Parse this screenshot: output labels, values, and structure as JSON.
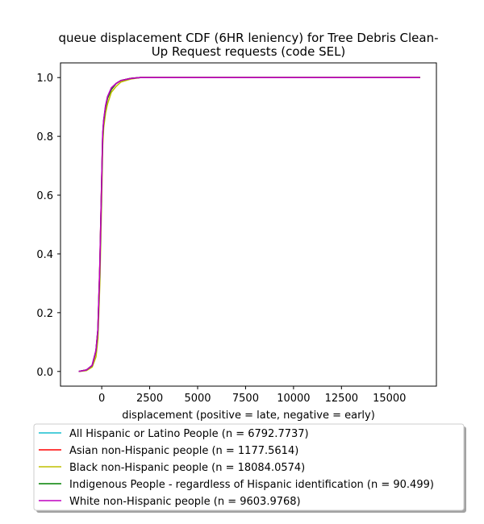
{
  "chart_data": {
    "type": "line",
    "title": [
      "queue displacement CDF (6HR leniency) for Tree Debris Clean-",
      "Up Request  requests (code SEL)"
    ],
    "xlabel": "displacement (positive = late, negative = early)",
    "ylabel": "",
    "xlim": [
      -2150,
      17450
    ],
    "ylim": [
      -0.05,
      1.05
    ],
    "xticks": [
      0,
      2500,
      5000,
      7500,
      10000,
      12500,
      15000
    ],
    "yticks": [
      0.0,
      0.2,
      0.4,
      0.6,
      0.8,
      1.0
    ],
    "grid": false,
    "legend_position": "below-plot",
    "series": [
      {
        "name": "All Hispanic or Latino People (n = 6792.7737)",
        "color": "#17becf",
        "x": [
          -1200,
          -800,
          -500,
          -300,
          -200,
          -100,
          0,
          50,
          100,
          200,
          300,
          500,
          750,
          1000,
          1500,
          2000,
          3000,
          16600
        ],
        "y": [
          0.0,
          0.005,
          0.02,
          0.07,
          0.14,
          0.35,
          0.65,
          0.8,
          0.85,
          0.9,
          0.93,
          0.96,
          0.98,
          0.99,
          0.997,
          1.0,
          1.0,
          1.0
        ]
      },
      {
        "name": "Asian non-Hispanic people (n = 1177.5614)",
        "color": "#ff0000",
        "x": [
          -1200,
          -800,
          -500,
          -300,
          -200,
          -100,
          0,
          50,
          100,
          200,
          300,
          500,
          750,
          1000,
          1500,
          2000,
          3000,
          16600
        ],
        "y": [
          0.0,
          0.005,
          0.02,
          0.07,
          0.14,
          0.36,
          0.66,
          0.8,
          0.85,
          0.9,
          0.93,
          0.96,
          0.98,
          0.99,
          0.997,
          1.0,
          1.0,
          1.0
        ]
      },
      {
        "name": "Black non-Hispanic people (n = 18084.0574)",
        "color": "#bfbf00",
        "x": [
          -1200,
          -800,
          -500,
          -300,
          -200,
          -100,
          0,
          50,
          100,
          200,
          300,
          500,
          750,
          1000,
          1500,
          2000,
          3000,
          16600
        ],
        "y": [
          0.0,
          0.003,
          0.015,
          0.05,
          0.11,
          0.3,
          0.6,
          0.77,
          0.83,
          0.88,
          0.91,
          0.95,
          0.97,
          0.985,
          0.995,
          1.0,
          1.0,
          1.0
        ]
      },
      {
        "name": "Indigenous People - regardless of Hispanic identification (n = 90.499)",
        "color": "#008000",
        "x": [
          -1200,
          -800,
          -500,
          -300,
          -200,
          -100,
          0,
          50,
          100,
          200,
          300,
          500,
          750,
          1000,
          1500,
          2000,
          3000,
          16600
        ],
        "y": [
          0.0,
          0.005,
          0.02,
          0.07,
          0.14,
          0.35,
          0.65,
          0.8,
          0.85,
          0.9,
          0.93,
          0.96,
          0.98,
          0.99,
          0.997,
          1.0,
          1.0,
          1.0
        ]
      },
      {
        "name": "White non-Hispanic people (n = 9603.9768)",
        "color": "#bf00bf",
        "x": [
          -1200,
          -800,
          -500,
          -300,
          -200,
          -100,
          0,
          50,
          100,
          200,
          300,
          500,
          750,
          1000,
          1500,
          2000,
          3000,
          16600
        ],
        "y": [
          0.0,
          0.005,
          0.021,
          0.072,
          0.145,
          0.36,
          0.66,
          0.81,
          0.855,
          0.905,
          0.935,
          0.965,
          0.98,
          0.99,
          0.997,
          1.0,
          1.0,
          1.0
        ]
      }
    ]
  }
}
